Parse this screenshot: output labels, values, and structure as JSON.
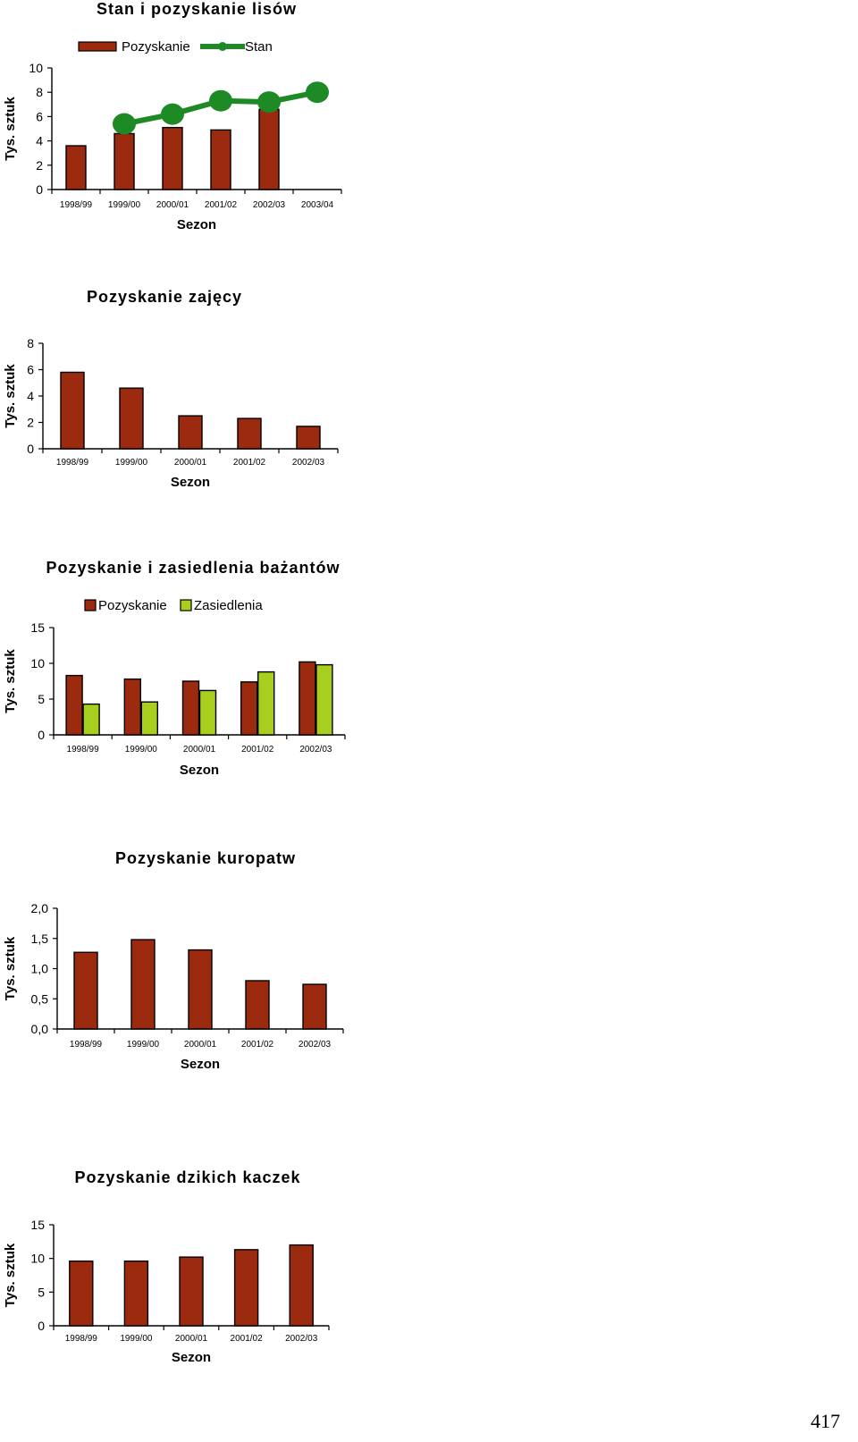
{
  "page_number": "417",
  "colors": {
    "bar": "#9b2a0e",
    "bar2": "#a8cf1e",
    "line": "#1e8a25"
  },
  "chart_data": [
    {
      "type": "bar",
      "title": "Stan i pozyskanie lisów",
      "xlabel": "Sezon",
      "ylabel": "Tys. sztuk",
      "categories": [
        "1998/99",
        "1999/00",
        "2000/01",
        "2001/02",
        "2002/03",
        "2003/04"
      ],
      "ylim": [
        0,
        10
      ],
      "yticks": [
        "0",
        "2",
        "4",
        "6",
        "8",
        "10"
      ],
      "legend_position": "top",
      "series": [
        {
          "name": "Pozyskanie",
          "kind": "bar",
          "values": [
            3.6,
            4.6,
            5.1,
            4.9,
            6.6,
            null
          ]
        },
        {
          "name": "Stan",
          "kind": "line",
          "values": [
            null,
            5.4,
            6.2,
            7.3,
            7.2,
            8.0
          ]
        }
      ]
    },
    {
      "type": "bar",
      "title": "Pozyskanie zajęcy",
      "xlabel": "Sezon",
      "ylabel": "Tys. sztuk",
      "categories": [
        "1998/99",
        "1999/00",
        "2000/01",
        "2001/02",
        "2002/03"
      ],
      "ylim": [
        0,
        8
      ],
      "yticks": [
        "0",
        "2",
        "4",
        "6",
        "8"
      ],
      "series": [
        {
          "kind": "bar",
          "values": [
            5.8,
            4.6,
            2.5,
            2.3,
            1.7
          ]
        }
      ]
    },
    {
      "type": "bar",
      "title": "Pozyskanie i zasiedlenia bażantów",
      "xlabel": "Sezon",
      "ylabel": "Tys. sztuk",
      "categories": [
        "1998/99",
        "1999/00",
        "2000/01",
        "2001/02",
        "2002/03"
      ],
      "ylim": [
        0,
        15
      ],
      "yticks": [
        "0",
        "5",
        "10",
        "15"
      ],
      "legend_position": "top",
      "series": [
        {
          "name": "Pozyskanie",
          "kind": "bar",
          "values": [
            8.3,
            7.8,
            7.5,
            7.4,
            10.2
          ]
        },
        {
          "name": "Zasiedlenia",
          "kind": "bar",
          "values": [
            4.3,
            4.6,
            6.2,
            8.8,
            9.8
          ]
        }
      ]
    },
    {
      "type": "bar",
      "title": "Pozyskanie kuropatw",
      "xlabel": "Sezon",
      "ylabel": "Tys. sztuk",
      "categories": [
        "1998/99",
        "1999/00",
        "2000/01",
        "2001/02",
        "2002/03"
      ],
      "ylim": [
        0,
        2.0
      ],
      "yticks": [
        "0,0",
        "0,5",
        "1,0",
        "1,5",
        "2,0"
      ],
      "series": [
        {
          "kind": "bar",
          "values": [
            1.27,
            1.48,
            1.31,
            0.8,
            0.74
          ]
        }
      ]
    },
    {
      "type": "bar",
      "title": "Pozyskanie dzikich kaczek",
      "xlabel": "Sezon",
      "ylabel": "Tys. sztuk",
      "categories": [
        "1998/99",
        "1999/00",
        "2000/01",
        "2001/02",
        "2002/03"
      ],
      "ylim": [
        0,
        15
      ],
      "yticks": [
        "0",
        "5",
        "10",
        "15"
      ],
      "series": [
        {
          "kind": "bar",
          "values": [
            9.6,
            9.6,
            10.2,
            11.3,
            12.0
          ]
        }
      ]
    }
  ]
}
